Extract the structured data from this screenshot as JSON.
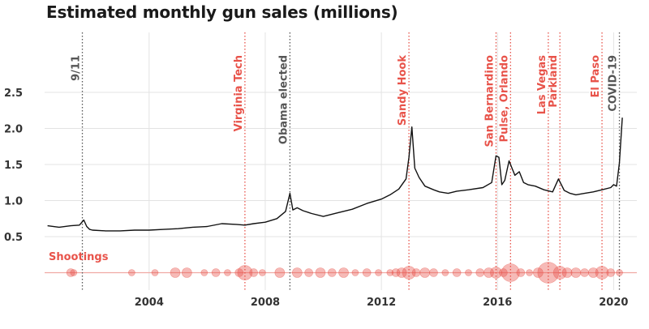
{
  "title": "Estimated monthly gun sales (millions)",
  "colors": {
    "accent": "#e8534a",
    "neutral": "#555555",
    "line": "#111111",
    "grid": "#e3e3e3"
  },
  "chart_data": {
    "type": "line",
    "title": "Estimated monthly gun sales (millions)",
    "xlabel": "",
    "ylabel": "",
    "xlim": [
      2000.4,
      2020.8
    ],
    "ylim": [
      0,
      2.75
    ],
    "y_ticks": [
      0.5,
      1.0,
      1.5,
      2.0,
      2.5
    ],
    "y_tick_labels": [
      "0.5",
      "1.0",
      "1.5",
      "2.0",
      "2.5"
    ],
    "x_ticks": [
      2004,
      2008,
      2012,
      2016,
      2020
    ],
    "x_tick_labels": [
      "2004",
      "2008",
      "2012",
      "2016",
      "2020"
    ],
    "series": [
      {
        "x": [
          2000.5,
          2000.9,
          2001.3,
          2001.6,
          2001.75,
          2001.85,
          2001.95,
          2002.05,
          2002.5,
          2003.0,
          2003.5,
          2004.0,
          2004.5,
          2005.0,
          2005.5,
          2006.0,
          2006.5,
          2007.0,
          2007.3,
          2007.6,
          2008.0,
          2008.4,
          2008.7,
          2008.85,
          2008.95,
          2009.1,
          2009.3,
          2009.6,
          2010.0,
          2010.5,
          2011.0,
          2011.5,
          2012.0,
          2012.3,
          2012.6,
          2012.85,
          2012.95,
          2013.05,
          2013.15,
          2013.3,
          2013.5,
          2013.8,
          2014.0,
          2014.3,
          2014.6,
          2015.0,
          2015.5,
          2015.8,
          2015.95,
          2016.05,
          2016.15,
          2016.25,
          2016.4,
          2016.5,
          2016.6,
          2016.75,
          2016.9,
          2017.05,
          2017.3,
          2017.6,
          2017.9,
          2018.1,
          2018.3,
          2018.5,
          2018.7,
          2019.0,
          2019.3,
          2019.6,
          2019.9,
          2020.0,
          2020.1,
          2020.2,
          2020.3
        ],
        "y": [
          0.65,
          0.63,
          0.65,
          0.66,
          0.73,
          0.64,
          0.6,
          0.59,
          0.58,
          0.58,
          0.59,
          0.59,
          0.6,
          0.61,
          0.63,
          0.64,
          0.68,
          0.67,
          0.66,
          0.68,
          0.7,
          0.75,
          0.85,
          1.1,
          0.87,
          0.9,
          0.86,
          0.82,
          0.78,
          0.83,
          0.88,
          0.96,
          1.02,
          1.08,
          1.16,
          1.3,
          1.6,
          2.02,
          1.45,
          1.32,
          1.2,
          1.15,
          1.12,
          1.1,
          1.13,
          1.15,
          1.18,
          1.25,
          1.62,
          1.6,
          1.22,
          1.28,
          1.55,
          1.45,
          1.35,
          1.4,
          1.25,
          1.22,
          1.2,
          1.15,
          1.12,
          1.3,
          1.14,
          1.1,
          1.08,
          1.1,
          1.12,
          1.15,
          1.18,
          1.22,
          1.2,
          1.52,
          2.15
        ]
      }
    ],
    "events": [
      {
        "label": "9/11",
        "x": 2001.7,
        "color": "#555555"
      },
      {
        "label": "Virginia Tech",
        "x": 2007.3,
        "color": "#e8534a"
      },
      {
        "label": "Obama elected",
        "x": 2008.85,
        "color": "#555555"
      },
      {
        "label": "Sandy Hook",
        "x": 2012.95,
        "color": "#e8534a"
      },
      {
        "label": "San Bernardino",
        "x": 2015.95,
        "color": "#e8534a"
      },
      {
        "label": "Pulse, Orlando",
        "x": 2016.45,
        "color": "#e8534a"
      },
      {
        "label": "Las Vegas",
        "x": 2017.75,
        "color": "#e8534a"
      },
      {
        "label": "Parkland",
        "x": 2018.15,
        "color": "#e8534a"
      },
      {
        "label": "El Paso",
        "x": 2019.6,
        "color": "#e8534a"
      },
      {
        "label": "COVID-19",
        "x": 2020.2,
        "color": "#555555"
      }
    ],
    "shootings_label": "Shootings",
    "shootings": [
      {
        "x": 2001.3,
        "r": 5
      },
      {
        "x": 2001.4,
        "r": 4
      },
      {
        "x": 2003.4,
        "r": 4
      },
      {
        "x": 2004.2,
        "r": 4
      },
      {
        "x": 2004.9,
        "r": 6
      },
      {
        "x": 2005.3,
        "r": 6
      },
      {
        "x": 2005.9,
        "r": 4
      },
      {
        "x": 2006.3,
        "r": 5
      },
      {
        "x": 2006.7,
        "r": 4
      },
      {
        "x": 2007.1,
        "r": 5
      },
      {
        "x": 2007.3,
        "r": 9
      },
      {
        "x": 2007.6,
        "r": 5
      },
      {
        "x": 2007.9,
        "r": 4
      },
      {
        "x": 2008.5,
        "r": 6
      },
      {
        "x": 2009.1,
        "r": 6
      },
      {
        "x": 2009.5,
        "r": 5
      },
      {
        "x": 2009.9,
        "r": 6
      },
      {
        "x": 2010.3,
        "r": 5
      },
      {
        "x": 2010.7,
        "r": 6
      },
      {
        "x": 2011.1,
        "r": 4
      },
      {
        "x": 2011.5,
        "r": 5
      },
      {
        "x": 2011.9,
        "r": 4
      },
      {
        "x": 2012.3,
        "r": 4
      },
      {
        "x": 2012.5,
        "r": 5
      },
      {
        "x": 2012.7,
        "r": 6
      },
      {
        "x": 2012.95,
        "r": 8
      },
      {
        "x": 2013.2,
        "r": 5
      },
      {
        "x": 2013.5,
        "r": 6
      },
      {
        "x": 2013.8,
        "r": 5
      },
      {
        "x": 2014.2,
        "r": 4
      },
      {
        "x": 2014.6,
        "r": 5
      },
      {
        "x": 2015.0,
        "r": 4
      },
      {
        "x": 2015.4,
        "r": 5
      },
      {
        "x": 2015.7,
        "r": 6
      },
      {
        "x": 2015.95,
        "r": 7
      },
      {
        "x": 2016.2,
        "r": 5
      },
      {
        "x": 2016.45,
        "r": 11
      },
      {
        "x": 2016.8,
        "r": 5
      },
      {
        "x": 2017.1,
        "r": 4
      },
      {
        "x": 2017.4,
        "r": 6
      },
      {
        "x": 2017.75,
        "r": 13
      },
      {
        "x": 2018.15,
        "r": 8
      },
      {
        "x": 2018.4,
        "r": 6
      },
      {
        "x": 2018.7,
        "r": 6
      },
      {
        "x": 2019.0,
        "r": 5
      },
      {
        "x": 2019.3,
        "r": 6
      },
      {
        "x": 2019.6,
        "r": 8
      },
      {
        "x": 2019.9,
        "r": 5
      },
      {
        "x": 2020.2,
        "r": 4
      }
    ],
    "grid": true
  }
}
